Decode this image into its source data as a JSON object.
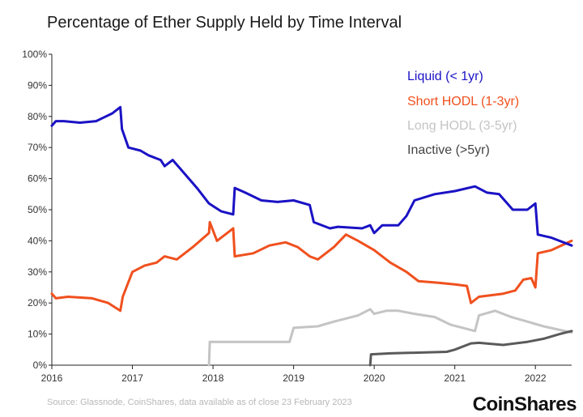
{
  "chart_data": {
    "type": "line",
    "title": "Percentage of Ether Supply Held by Time Interval",
    "xlabel": "",
    "ylabel": "",
    "xlim": [
      2016,
      2022.45
    ],
    "ylim": [
      0,
      100
    ],
    "x_ticks": [
      "2016",
      "2017",
      "2018",
      "2019",
      "2020",
      "2021",
      "2022"
    ],
    "y_ticks": [
      "0%",
      "10%",
      "20%",
      "30%",
      "40%",
      "50%",
      "60%",
      "70%",
      "80%",
      "90%",
      "100%"
    ],
    "legend_position": "top-right",
    "series": [
      {
        "name": "Liquid (< 1yr)",
        "color": "#1a12c4",
        "x": [
          2016.0,
          2016.05,
          2016.15,
          2016.35,
          2016.55,
          2016.75,
          2016.85,
          2016.87,
          2016.95,
          2017.1,
          2017.2,
          2017.35,
          2017.4,
          2017.5,
          2017.6,
          2017.8,
          2017.95,
          2018.1,
          2018.25,
          2018.27,
          2018.4,
          2018.6,
          2018.8,
          2019.0,
          2019.2,
          2019.25,
          2019.45,
          2019.55,
          2019.85,
          2019.95,
          2020.0,
          2020.1,
          2020.3,
          2020.4,
          2020.5,
          2020.75,
          2021.0,
          2021.25,
          2021.4,
          2021.55,
          2021.72,
          2021.9,
          2022.0,
          2022.03,
          2022.2,
          2022.45
        ],
        "y": [
          77,
          78.5,
          78.5,
          78,
          78.5,
          81,
          83,
          76,
          70,
          69,
          67.5,
          66,
          64,
          66,
          63,
          57,
          52,
          49.5,
          48.5,
          57,
          55.5,
          53,
          52.5,
          53,
          51.5,
          46,
          44,
          44.5,
          44,
          45,
          42.5,
          45,
          45,
          48,
          53,
          55,
          56,
          57.5,
          55.5,
          55,
          50,
          50,
          52,
          42,
          41,
          38.5
        ]
      },
      {
        "name": "Short HODL (1-3yr)",
        "color": "#f0501e",
        "x": [
          2016.0,
          2016.05,
          2016.2,
          2016.5,
          2016.7,
          2016.85,
          2016.88,
          2017.0,
          2017.15,
          2017.3,
          2017.4,
          2017.55,
          2017.75,
          2017.95,
          2017.96,
          2018.05,
          2018.2,
          2018.25,
          2018.27,
          2018.5,
          2018.7,
          2018.9,
          2019.05,
          2019.2,
          2019.3,
          2019.5,
          2019.65,
          2019.8,
          2020.0,
          2020.2,
          2020.4,
          2020.55,
          2020.8,
          2021.0,
          2021.15,
          2021.2,
          2021.3,
          2021.45,
          2021.6,
          2021.75,
          2021.85,
          2021.95,
          2022.0,
          2022.03,
          2022.2,
          2022.45
        ],
        "y": [
          23,
          21.5,
          22,
          21.5,
          20,
          17.5,
          22,
          30,
          32,
          33,
          35,
          34,
          38,
          42.5,
          46,
          40,
          43,
          44,
          35,
          36,
          38.5,
          39.5,
          38,
          35,
          34,
          38,
          42,
          40,
          37,
          33,
          30,
          27,
          26.5,
          26,
          25.5,
          20,
          22,
          22.5,
          23,
          24,
          27.5,
          28,
          25,
          36,
          37,
          40
        ]
      },
      {
        "name": "Long HODL (3-5yr)",
        "color": "#c4c4c4",
        "x": [
          2017.95,
          2017.96,
          2018.3,
          2018.6,
          2018.8,
          2018.95,
          2019.0,
          2019.3,
          2019.5,
          2019.8,
          2019.95,
          2020.0,
          2020.15,
          2020.3,
          2020.5,
          2020.75,
          2020.95,
          2021.1,
          2021.25,
          2021.3,
          2021.5,
          2021.7,
          2021.9,
          2022.1,
          2022.45
        ],
        "y": [
          0,
          7.5,
          7.5,
          7.5,
          7.5,
          7.5,
          12,
          12.5,
          14,
          16,
          18,
          16.5,
          17.5,
          17.5,
          16.5,
          15.5,
          13,
          12,
          11,
          16,
          17.5,
          15.5,
          14,
          12.5,
          10.5
        ]
      },
      {
        "name": "Inactive (>5yr)",
        "color": "#5a5a5a",
        "x": [
          2019.95,
          2019.96,
          2020.2,
          2020.5,
          2020.9,
          2021.0,
          2021.2,
          2021.3,
          2021.6,
          2021.9,
          2022.1,
          2022.3,
          2022.45
        ],
        "y": [
          0,
          3.5,
          3.8,
          4,
          4.3,
          5,
          7,
          7.2,
          6.5,
          7.5,
          8.5,
          10,
          11
        ]
      }
    ]
  },
  "source_note": "Source: Glassnode, CoinShares, data available as of close 23 February 2023",
  "brand": "CoinShares"
}
